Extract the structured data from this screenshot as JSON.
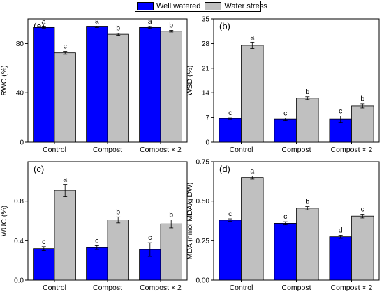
{
  "legend": {
    "items": [
      {
        "label": "Well watered",
        "color": "#0000ff"
      },
      {
        "label": "Water stress",
        "color": "#c0c0c0"
      }
    ]
  },
  "chart_data": [
    {
      "type": "bar",
      "panel": "(a)",
      "ylabel": "RWC (%)",
      "ylim": [
        0,
        100
      ],
      "yticks": [
        0,
        40,
        80
      ],
      "categories": [
        "Control",
        "Compost",
        "Compost × 2"
      ],
      "series": [
        {
          "name": "Well watered",
          "values": [
            93,
            93.5,
            93
          ],
          "errors": [
            0.5,
            0.5,
            0.8
          ],
          "letters": [
            "a",
            "a",
            "a"
          ]
        },
        {
          "name": "Water stress",
          "values": [
            72.5,
            87.5,
            90
          ],
          "errors": [
            1.2,
            0.8,
            0.7
          ],
          "letters": [
            "c",
            "b",
            "b"
          ]
        }
      ]
    },
    {
      "type": "bar",
      "panel": "(b)",
      "ylabel": "WSD (%)",
      "ylim": [
        0,
        35
      ],
      "yticks": [
        0,
        7,
        14,
        21,
        28,
        35
      ],
      "categories": [
        "Control",
        "Compost",
        "Compost × 2"
      ],
      "series": [
        {
          "name": "Well watered",
          "values": [
            6.7,
            6.5,
            6.5
          ],
          "errors": [
            0.2,
            0.3,
            0.9
          ],
          "letters": [
            "c",
            "c",
            "c"
          ]
        },
        {
          "name": "Water stress",
          "values": [
            27.5,
            12.5,
            10.3
          ],
          "errors": [
            0.9,
            0.4,
            0.6
          ],
          "letters": [
            "a",
            "b",
            "b"
          ]
        }
      ]
    },
    {
      "type": "bar",
      "panel": "(c)",
      "ylabel": "WUC (%)",
      "ylim": [
        0,
        1.2
      ],
      "yticks": [
        0.0,
        0.4,
        0.8
      ],
      "categories": [
        "Control",
        "Compost",
        "Compost × 2"
      ],
      "series": [
        {
          "name": "Well watered",
          "values": [
            0.32,
            0.33,
            0.31
          ],
          "errors": [
            0.02,
            0.02,
            0.07
          ],
          "letters": [
            "c",
            "c",
            "c"
          ]
        },
        {
          "name": "Water stress",
          "values": [
            0.91,
            0.61,
            0.57
          ],
          "errors": [
            0.06,
            0.03,
            0.04
          ],
          "letters": [
            "a",
            "b",
            "b"
          ]
        }
      ]
    },
    {
      "type": "bar",
      "panel": "(d)",
      "ylabel": "MDA (nmol MDA/g DW)",
      "ylim": [
        0,
        0.75
      ],
      "yticks": [
        0.0,
        0.25,
        0.5,
        0.75
      ],
      "categories": [
        "Control",
        "Compost",
        "Compost × 2"
      ],
      "series": [
        {
          "name": "Well watered",
          "values": [
            0.38,
            0.36,
            0.275
          ],
          "errors": [
            0.008,
            0.01,
            0.01
          ],
          "letters": [
            "c",
            "c",
            "d"
          ]
        },
        {
          "name": "Water stress",
          "values": [
            0.65,
            0.455,
            0.405
          ],
          "errors": [
            0.01,
            0.01,
            0.012
          ],
          "letters": [
            "a",
            "b",
            "c"
          ]
        }
      ]
    }
  ]
}
